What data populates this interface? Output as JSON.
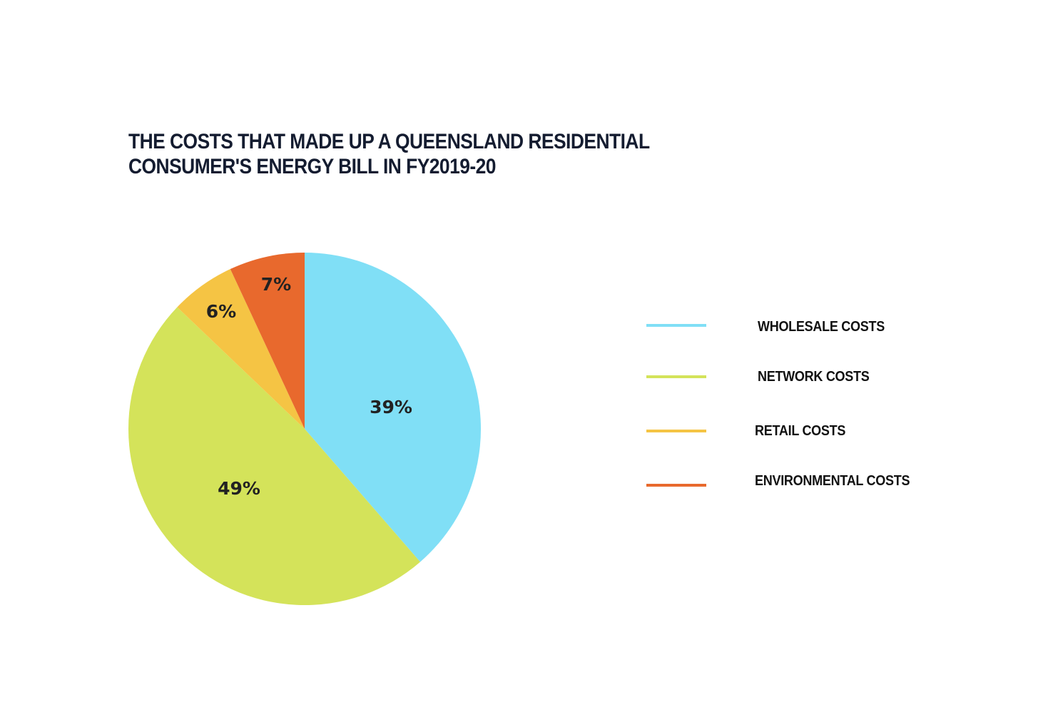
{
  "title": {
    "line1": "THE COSTS THAT MADE UP A QUEENSLAND RESIDENTIAL",
    "line2": "CONSUMER'S ENERGY BILL IN FY2019-20"
  },
  "colors": {
    "wholesale": "#80dff6",
    "network": "#d4e35a",
    "retail": "#f5c444",
    "environmental": "#e8692d",
    "title": "#141c30"
  },
  "slices": [
    {
      "label": "39%"
    },
    {
      "label": "49%"
    },
    {
      "label": "6%"
    },
    {
      "label": "7%"
    }
  ],
  "legend": [
    {
      "label": "WHOLESALE COSTS"
    },
    {
      "label": "NETWORK COSTS"
    },
    {
      "label": "RETAIL COSTS"
    },
    {
      "label": "ENVIRONMENTAL COSTS"
    }
  ],
  "chart_data": {
    "type": "pie",
    "title": "THE COSTS THAT MADE UP A QUEENSLAND RESIDENTIAL CONSUMER'S ENERGY BILL IN FY2019-20",
    "categories": [
      "Wholesale costs",
      "Network costs",
      "Retail costs",
      "Environmental costs"
    ],
    "values": [
      39,
      49,
      6,
      7
    ],
    "unit": "%",
    "colors": [
      "#80dff6",
      "#d4e35a",
      "#f5c444",
      "#e8692d"
    ],
    "start_angle": "12 o'clock",
    "direction": "clockwise",
    "legend_position": "right",
    "data_labels": [
      "39%",
      "49%",
      "6%",
      "7%"
    ]
  }
}
